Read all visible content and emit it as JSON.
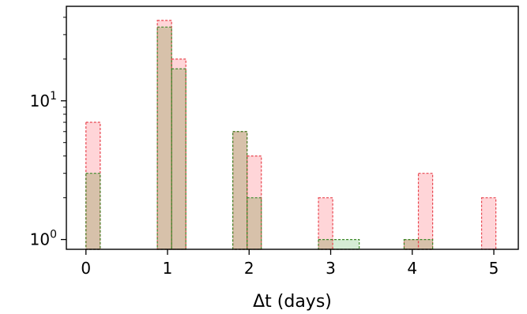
{
  "chart_data": {
    "type": "histogram",
    "xlabel": "Δt (days)",
    "ylabel": "",
    "yscale": "log",
    "xlim": [
      -0.24,
      5.3
    ],
    "ylim": [
      0.85,
      48
    ],
    "grid": false,
    "legend": "none",
    "bin_width": 0.175,
    "x_ticks": [
      {
        "value": 0,
        "label": "0"
      },
      {
        "value": 1,
        "label": "1"
      },
      {
        "value": 2,
        "label": "2"
      },
      {
        "value": 3,
        "label": "3"
      },
      {
        "value": 4,
        "label": "4"
      },
      {
        "value": 5,
        "label": "5"
      }
    ],
    "y_ticks": [
      {
        "value": 1,
        "base": "10",
        "exp": "0"
      },
      {
        "value": 10,
        "base": "10",
        "exp": "1"
      }
    ],
    "series": [
      {
        "color_fill": "#ffd5d8",
        "color_edge": "#e8454e",
        "bins": [
          {
            "x0": 0.0,
            "x1": 0.175,
            "value": 7
          },
          {
            "x0": 0.875,
            "x1": 1.05,
            "value": 38
          },
          {
            "x0": 1.05,
            "x1": 1.225,
            "value": 20
          },
          {
            "x0": 1.8,
            "x1": 1.975,
            "value": 6
          },
          {
            "x0": 1.975,
            "x1": 2.15,
            "value": 4
          },
          {
            "x0": 2.85,
            "x1": 3.025,
            "value": 2
          },
          {
            "x0": 3.9,
            "x1": 4.075,
            "value": 1
          },
          {
            "x0": 4.075,
            "x1": 4.25,
            "value": 3
          },
          {
            "x0": 4.85,
            "x1": 5.025,
            "value": 2
          }
        ]
      },
      {
        "color_fill": "#d5ecd5",
        "color_edge": "#3d8a2a",
        "bins": [
          {
            "x0": 0.0,
            "x1": 0.175,
            "value": 3
          },
          {
            "x0": 0.875,
            "x1": 1.05,
            "value": 34
          },
          {
            "x0": 1.05,
            "x1": 1.225,
            "value": 17
          },
          {
            "x0": 1.8,
            "x1": 1.975,
            "value": 6
          },
          {
            "x0": 1.975,
            "x1": 2.15,
            "value": 2
          },
          {
            "x0": 2.85,
            "x1": 3.35,
            "value": 1
          },
          {
            "x0": 3.9,
            "x1": 4.25,
            "value": 1
          }
        ]
      }
    ],
    "overlap_fill": "#d7c1aa"
  }
}
